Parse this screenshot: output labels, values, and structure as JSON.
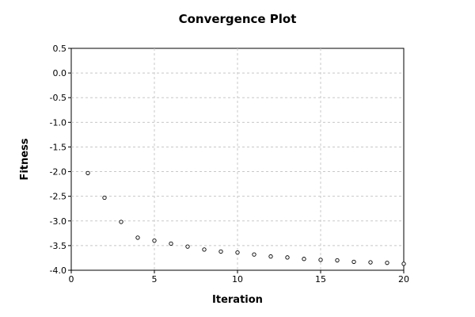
{
  "chart_data": {
    "type": "scatter",
    "title": "Convergence Plot",
    "xlabel": "Iteration",
    "ylabel": "Fitness",
    "xlim": [
      0,
      20
    ],
    "ylim": [
      -4.0,
      0.5
    ],
    "xticks": [
      0,
      5,
      10,
      15,
      20
    ],
    "xtick_labels": [
      "0",
      "5",
      "10",
      "15",
      "20"
    ],
    "yticks": [
      0.5,
      0.0,
      -0.5,
      -1.0,
      -1.5,
      -2.0,
      -2.5,
      -3.0,
      -3.5,
      -4.0
    ],
    "ytick_labels": [
      "0.5",
      "0.0",
      "-0.5",
      "-1.0",
      "-1.5",
      "-2.0",
      "-2.5",
      "-3.0",
      "-3.5",
      "-4.0"
    ],
    "grid": true,
    "legend": "none",
    "marker": "open-circle",
    "x": [
      1,
      2,
      3,
      4,
      5,
      6,
      7,
      8,
      9,
      10,
      11,
      12,
      13,
      14,
      15,
      16,
      17,
      18,
      19,
      20
    ],
    "y": [
      -2.03,
      -2.53,
      -3.02,
      -3.34,
      -3.4,
      -3.46,
      -3.52,
      -3.58,
      -3.62,
      -3.64,
      -3.68,
      -3.72,
      -3.74,
      -3.77,
      -3.79,
      -3.8,
      -3.83,
      -3.84,
      -3.85,
      -3.87
    ]
  }
}
